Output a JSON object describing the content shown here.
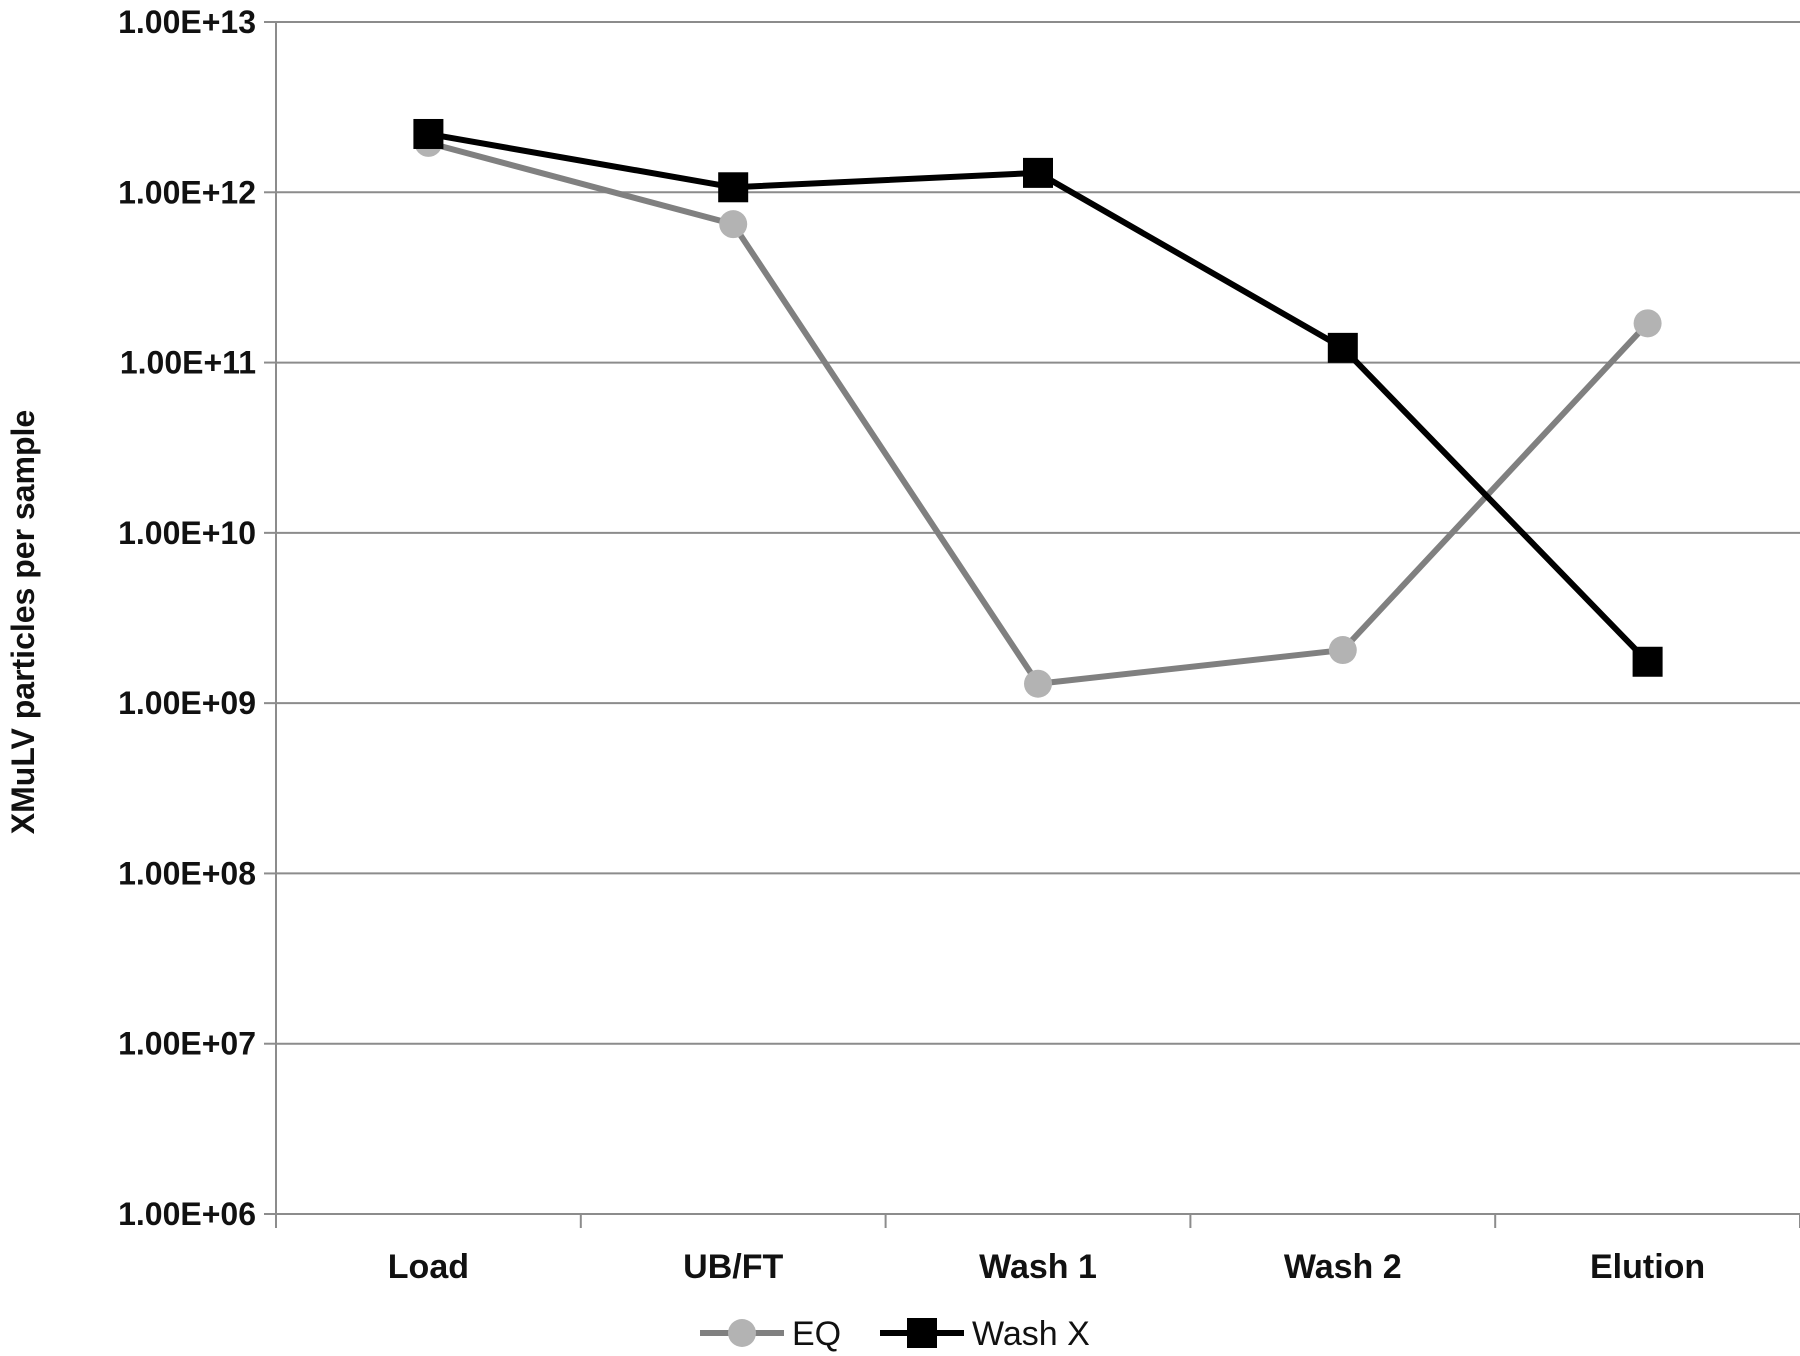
{
  "chart_data": {
    "type": "line",
    "categories": [
      "Load",
      "UB/FT",
      "Wash 1",
      "Wash 2",
      "Elution"
    ],
    "series": [
      {
        "name": "EQ",
        "values": [
          1950000000000.0,
          650000000000.0,
          1300000000.0,
          2050000000.0,
          170000000000.0
        ],
        "color": "#808080",
        "marker_color": "#b3b3b3",
        "marker": "circle"
      },
      {
        "name": "Wash X",
        "values": [
          2200000000000.0,
          1070000000000.0,
          1300000000000.0,
          122000000000.0,
          1750000000.0
        ],
        "color": "#000000",
        "marker_color": "#000000",
        "marker": "square"
      }
    ],
    "ylabel": "XMuLV particles per sample",
    "xlabel": "",
    "yscale": "log",
    "ylim": [
      1000000.0,
      10000000000000.0
    ],
    "yticks": [
      "1.00E+06",
      "1.00E+07",
      "1.00E+08",
      "1.00E+09",
      "1.00E+10",
      "1.00E+11",
      "1.00E+12",
      "1.00E+13"
    ],
    "grid": true,
    "legend_position": "bottom"
  }
}
